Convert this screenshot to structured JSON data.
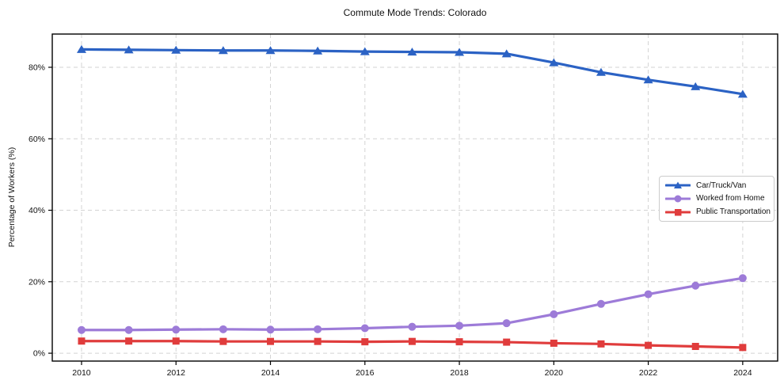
{
  "figure": {
    "title": "Commute Mode Trends: Colorado"
  },
  "chart_data": {
    "type": "line",
    "title": "Commute Mode Trends: Colorado",
    "xlabel": "",
    "ylabel": "Percentage of Workers (%)",
    "x": [
      2010,
      2011,
      2012,
      2013,
      2014,
      2015,
      2016,
      2017,
      2018,
      2019,
      2020,
      2021,
      2022,
      2023,
      2024
    ],
    "series": [
      {
        "name": "Car/Truck/Van",
        "color": "#2b62c4",
        "marker": "triangle",
        "values": [
          85.0,
          84.9,
          84.8,
          84.7,
          84.7,
          84.6,
          84.4,
          84.3,
          84.2,
          83.8,
          81.3,
          78.6,
          76.5,
          74.6,
          72.5
        ]
      },
      {
        "name": "Worked from Home",
        "color": "#9d7bd8",
        "marker": "circle",
        "values": [
          6.5,
          6.5,
          6.6,
          6.7,
          6.6,
          6.7,
          7.0,
          7.4,
          7.7,
          8.4,
          10.9,
          13.8,
          16.5,
          18.9,
          21.0
        ]
      },
      {
        "name": "Public Transportation",
        "color": "#e03c3c",
        "marker": "square",
        "values": [
          3.4,
          3.4,
          3.4,
          3.3,
          3.3,
          3.3,
          3.2,
          3.3,
          3.2,
          3.1,
          2.8,
          2.6,
          2.2,
          1.9,
          1.6
        ]
      }
    ],
    "x_tick_values": [
      2010,
      2012,
      2014,
      2016,
      2018,
      2020,
      2022,
      2024
    ],
    "x_tick_labels": [
      "2010",
      "2012",
      "2014",
      "2016",
      "2018",
      "2020",
      "2022",
      "2024"
    ],
    "y_tick_values": [
      0,
      20,
      40,
      60,
      80
    ],
    "y_tick_labels": [
      "0%",
      "20%",
      "40%",
      "60%",
      "80%"
    ],
    "xlim": [
      2009.38,
      2024.74
    ],
    "ylim": [
      -2.2,
      89.3
    ],
    "grid": true,
    "grid_style": "dashed",
    "grid_color": "#d3d3d3",
    "spine_color": "#000000",
    "legend_position": "center right"
  }
}
